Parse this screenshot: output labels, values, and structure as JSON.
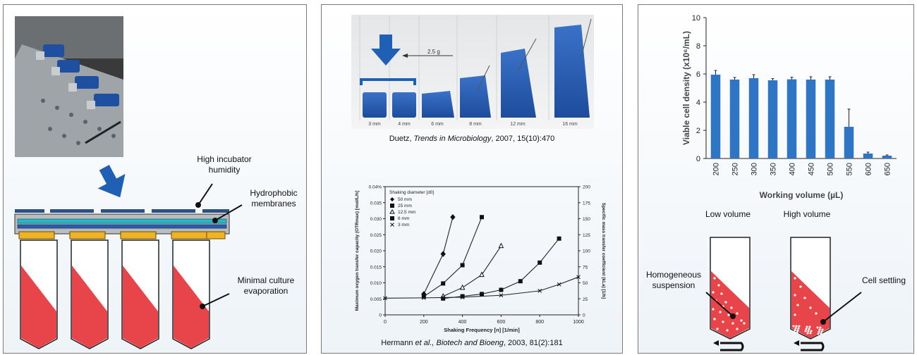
{
  "panel1": {
    "label_humidity": "High incubator humidity",
    "label_membranes": "Hydrophobic membranes",
    "label_evaporation": "Minimal culture evaporation"
  },
  "panel2": {
    "photo": {
      "arrow_label": "2.5 g",
      "column_labels": [
        "3 mm",
        "4 mm",
        "6 mm",
        "8 mm",
        "12 mm",
        "16 mm"
      ]
    },
    "citation1": {
      "author": "Duetz, ",
      "journal": "Trends in Microbiology",
      "rest": ", 2007, 15(10):470"
    },
    "citation2": {
      "author": "Hermann ",
      "etal": "et al.",
      "journal": ", Biotech and Bioeng",
      "rest": ", 2003, 81(2):181"
    }
  },
  "chart_data": [
    {
      "type": "line",
      "title": "",
      "xlabel": "Shaking Frequency [n] [1/min]",
      "ylabel": "Maximum oxygen transfer capacity (OTRmax) [mol/L/h]",
      "y2label": "Specific mass transfer coefficient (kLa) [1/h]",
      "xlim": [
        0,
        1000
      ],
      "ylim": [
        0,
        0.04
      ],
      "y2lim": [
        0,
        200
      ],
      "xticks": [
        "0",
        "200",
        "400",
        "600",
        "800",
        "1000"
      ],
      "yticks": [
        "0",
        "0.005",
        "0.010",
        "0.015",
        "0.020",
        "0.025",
        "0.030",
        "0.035",
        "0.04%"
      ],
      "y2ticks": [
        "0",
        "25",
        "50",
        "75",
        "100",
        "125",
        "150",
        "175",
        "200"
      ],
      "legend_title": "Shaking diameter [d0]",
      "legend_position": "top-left",
      "series": [
        {
          "name": "50 mm",
          "x": [
            200,
            300,
            350
          ],
          "y": [
            0.0065,
            0.019,
            0.0305
          ]
        },
        {
          "name": "25 mm",
          "x": [
            200,
            300,
            400,
            500
          ],
          "y": [
            0.0057,
            0.0098,
            0.0155,
            0.0305
          ]
        },
        {
          "name": "12.5 mm",
          "x": [
            300,
            400,
            500,
            600
          ],
          "y": [
            0.0058,
            0.0085,
            0.0125,
            0.0215
          ]
        },
        {
          "name": "6 mm",
          "x": [
            300,
            400,
            500,
            600,
            700,
            800,
            900
          ],
          "y": [
            0.0051,
            0.0058,
            0.0065,
            0.0078,
            0.0105,
            0.0163,
            0.0238
          ]
        },
        {
          "name": "3 mm",
          "x": [
            0,
            200,
            400,
            600,
            800,
            900,
            1000
          ],
          "y": [
            0.0052,
            0.0053,
            0.0055,
            0.0061,
            0.0075,
            0.0095,
            0.0118
          ]
        }
      ]
    },
    {
      "type": "bar",
      "title": "",
      "xlabel": "Working volume (µL)",
      "ylabel": "Viable cell density (x10⁶/mL)",
      "ylim": [
        0,
        10
      ],
      "yticks": [
        "0",
        "2",
        "4",
        "6",
        "8",
        "10"
      ],
      "categories": [
        "200",
        "250",
        "300",
        "350",
        "400",
        "450",
        "500",
        "550",
        "600",
        "650"
      ],
      "values": [
        5.95,
        5.6,
        5.7,
        5.55,
        5.62,
        5.6,
        5.6,
        2.25,
        0.35,
        0.2
      ],
      "errors": [
        0.3,
        0.15,
        0.25,
        0.12,
        0.15,
        0.2,
        0.2,
        1.25,
        0.1,
        0.05
      ],
      "bar_color": "#2f75c5"
    }
  ],
  "panel3": {
    "label_low": "Low volume",
    "label_high": "High volume",
    "label_homogeneous": "Homogeneous suspension",
    "label_settling": "Cell settling"
  },
  "colors": {
    "arrow_blue": "#1f5fb4",
    "culture_red": "#e8454b",
    "membrane_teal": "#26b8c9",
    "seal_yellow": "#f0b323",
    "bar_blue": "#2f75c5"
  }
}
